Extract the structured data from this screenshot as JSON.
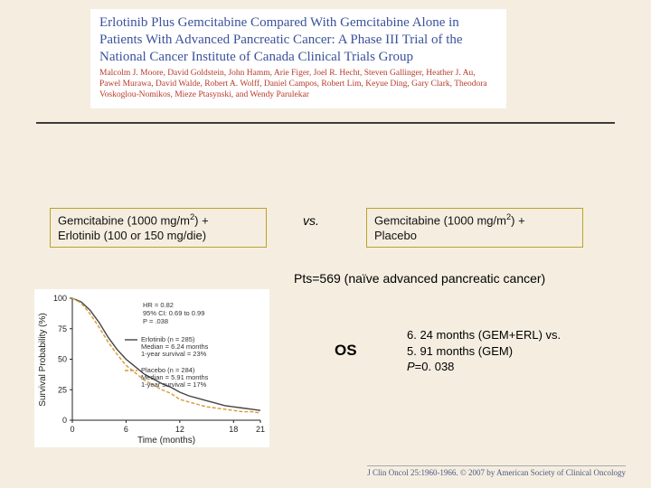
{
  "paper": {
    "title": "Erlotinib Plus Gemcitabine Compared With Gemcitabine Alone in Patients With Advanced Pancreatic Cancer: A Phase III Trial of the National Cancer Institute of Canada Clinical Trials Group",
    "authors": "Malcolm J. Moore, David Goldstein, John Hamm, Arie Figer, Joel R. Hecht, Steven Gallinger, Heather J. Au, Pawel Murawa, David Walde, Robert A. Wolff, Daniel Campos, Robert Lim, Keyue Ding, Gary Clark, Theodora Voskoglou-Nomikos, Mieze Ptasynski, and Wendy Parulekar"
  },
  "arms": {
    "left": {
      "line1": "Gemcitabine (1000 mg/m",
      "sup": "2",
      "line1b": ") +",
      "line2": "Erlotinib (100 or 150 mg/die)"
    },
    "vs": "vs.",
    "right": {
      "line1": "Gemcitabine (1000 mg/m",
      "sup": "2",
      "line1b": ") +",
      "line2": "Placebo"
    }
  },
  "pts": "Pts=569  (naïve advanced pancreatic cancer)",
  "os": {
    "label": "OS",
    "line1": "6. 24 months (GEM+ERL) vs.",
    "line2": "5. 91 months (GEM)",
    "line3_pre": "P",
    "line3_post": "=0. 038"
  },
  "chart": {
    "type": "line",
    "background": "#ffffff",
    "xlabel": "Time (months)",
    "ylabel": "Survival Probability (%)",
    "xlim": [
      0,
      21
    ],
    "xticks": [
      0,
      6,
      12,
      18,
      21
    ],
    "ylim": [
      0,
      100
    ],
    "yticks": [
      0,
      25,
      50,
      75,
      100
    ],
    "series": [
      {
        "name": "Erlotinib",
        "color": "#444444",
        "dash": "none",
        "points": [
          [
            0,
            100
          ],
          [
            1,
            97
          ],
          [
            2,
            90
          ],
          [
            3,
            80
          ],
          [
            4,
            68
          ],
          [
            5,
            58
          ],
          [
            6,
            50
          ],
          [
            7,
            44
          ],
          [
            8,
            38
          ],
          [
            9,
            34
          ],
          [
            10,
            30
          ],
          [
            11,
            27
          ],
          [
            12,
            23
          ],
          [
            13,
            20
          ],
          [
            14,
            18
          ],
          [
            15,
            16
          ],
          [
            16,
            14
          ],
          [
            17,
            12
          ],
          [
            18,
            11
          ],
          [
            19,
            10
          ],
          [
            20,
            9
          ],
          [
            21,
            8
          ]
        ]
      },
      {
        "name": "Placebo",
        "color": "#d99a33",
        "dash": "4 2",
        "points": [
          [
            0,
            100
          ],
          [
            1,
            96
          ],
          [
            2,
            87
          ],
          [
            3,
            76
          ],
          [
            4,
            64
          ],
          [
            5,
            54
          ],
          [
            6,
            45
          ],
          [
            7,
            39
          ],
          [
            8,
            33
          ],
          [
            9,
            29
          ],
          [
            10,
            25
          ],
          [
            11,
            22
          ],
          [
            12,
            17
          ],
          [
            13,
            15
          ],
          [
            14,
            13
          ],
          [
            15,
            11
          ],
          [
            16,
            10
          ],
          [
            17,
            9
          ],
          [
            18,
            8
          ],
          [
            19,
            7
          ],
          [
            20,
            7
          ],
          [
            21,
            6
          ]
        ]
      }
    ],
    "legend": {
      "hr": "HR = 0.82",
      "ci": "95% CI: 0.69 to 0.99",
      "p": "P = .038",
      "erl": "Erlotinib (n = 285)",
      "erl_med": "Median = 6.24 months",
      "erl_1y": "1-year survival = 23%",
      "pla": "Placebo (n = 284)",
      "pla_med": "Median = 5.91 months",
      "pla_1y": "1-year survival = 17%"
    }
  },
  "journal": "J Clin Oncol 25:1960-1966. © 2007 by American Society of Clinical Oncology"
}
